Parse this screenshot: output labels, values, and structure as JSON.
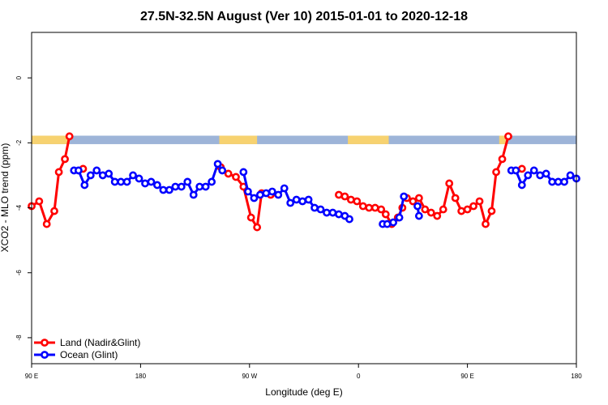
{
  "chart_data": {
    "type": "line",
    "title": "27.5N-32.5N August (Ver 10)   2015-01-01 to 2020-12-18",
    "xlabel": "Longitude (deg E)",
    "ylabel": "XCO2 - MLO trend (ppm)",
    "xlim": [
      0,
      360
    ],
    "ylim": [
      -8.8,
      1.4
    ],
    "x_tick_labels": [
      "90 E",
      "180",
      "90 W",
      "0",
      "90 E",
      "180"
    ],
    "y_ticks": [
      0,
      -2,
      -4,
      -6,
      -8
    ],
    "y_tick_labels": [
      "0",
      "-2",
      "-4",
      "-6",
      "-8"
    ],
    "grid": false,
    "legend_position": "bottom-left",
    "surface_band": {
      "y_range": [
        -1.78,
        -2.04
      ],
      "ocean_color": "#9db4d8",
      "land_color": "#f7d270",
      "land_segments": [
        [
          0,
          25
        ],
        [
          124,
          149
        ],
        [
          209,
          236
        ],
        [
          309,
          314
        ]
      ]
    },
    "series": [
      {
        "name": "Land (Nadir&Glint)",
        "color": "#ff0000",
        "segments": [
          [
            [
              0,
              -3.95
            ],
            [
              5,
              -3.8
            ],
            [
              10,
              -4.5
            ],
            [
              15,
              -4.1
            ],
            [
              18,
              -2.9
            ],
            [
              22,
              -2.5
            ],
            [
              25,
              -1.8
            ]
          ],
          [
            [
              34,
              -2.8
            ]
          ],
          [
            [
              125,
              -2.75
            ],
            [
              130,
              -2.95
            ],
            [
              135,
              -3.05
            ],
            [
              140,
              -3.35
            ],
            [
              145,
              -4.3
            ],
            [
              149,
              -4.6
            ],
            [
              152,
              -3.55
            ],
            [
              158,
              -3.6
            ]
          ],
          [
            [
              203,
              -3.6
            ],
            [
              207,
              -3.65
            ],
            [
              211,
              -3.75
            ],
            [
              215,
              -3.8
            ],
            [
              219,
              -3.95
            ],
            [
              223,
              -4.0
            ],
            [
              227,
              -4.0
            ],
            [
              231,
              -4.05
            ],
            [
              234,
              -4.2
            ],
            [
              238,
              -4.5
            ],
            [
              242,
              -4.3
            ],
            [
              245,
              -4.0
            ]
          ],
          [
            [
              248,
              -3.7
            ],
            [
              252,
              -3.8
            ],
            [
              256,
              -3.7
            ],
            [
              260,
              -4.05
            ],
            [
              264,
              -4.15
            ],
            [
              268,
              -4.25
            ],
            [
              272,
              -4.05
            ],
            [
              276,
              -3.25
            ],
            [
              280,
              -3.7
            ],
            [
              284,
              -4.1
            ],
            [
              288,
              -4.05
            ],
            [
              292,
              -3.95
            ],
            [
              296,
              -3.8
            ],
            [
              300,
              -4.5
            ],
            [
              304,
              -4.1
            ],
            [
              307,
              -2.9
            ],
            [
              311,
              -2.5
            ],
            [
              315,
              -1.8
            ]
          ],
          [
            [
              324,
              -2.8
            ]
          ]
        ]
      },
      {
        "name": "Ocean (Glint)",
        "color": "#0000ff",
        "segments": [
          [
            [
              28,
              -2.85
            ],
            [
              31,
              -2.85
            ],
            [
              35,
              -3.3
            ],
            [
              39,
              -3.0
            ],
            [
              43,
              -2.85
            ],
            [
              47,
              -3.0
            ],
            [
              51,
              -2.95
            ],
            [
              55,
              -3.2
            ],
            [
              59,
              -3.2
            ],
            [
              63,
              -3.2
            ],
            [
              67,
              -3.0
            ],
            [
              71,
              -3.1
            ],
            [
              75,
              -3.25
            ],
            [
              79,
              -3.2
            ],
            [
              83,
              -3.3
            ],
            [
              87,
              -3.45
            ],
            [
              91,
              -3.45
            ],
            [
              95,
              -3.35
            ],
            [
              99,
              -3.35
            ],
            [
              103,
              -3.2
            ],
            [
              107,
              -3.6
            ],
            [
              111,
              -3.35
            ],
            [
              115,
              -3.35
            ],
            [
              119,
              -3.2
            ],
            [
              123,
              -2.65
            ],
            [
              126,
              -2.85
            ]
          ],
          [
            [
              140,
              -2.9
            ],
            [
              143,
              -3.5
            ],
            [
              147,
              -3.7
            ],
            [
              151,
              -3.6
            ],
            [
              155,
              -3.55
            ],
            [
              159,
              -3.5
            ],
            [
              163,
              -3.6
            ],
            [
              167,
              -3.4
            ],
            [
              171,
              -3.85
            ],
            [
              175,
              -3.75
            ],
            [
              179,
              -3.8
            ],
            [
              183,
              -3.75
            ],
            [
              187,
              -4.0
            ],
            [
              191,
              -4.05
            ],
            [
              195,
              -4.15
            ],
            [
              199,
              -4.15
            ],
            [
              203,
              -4.2
            ],
            [
              207,
              -4.25
            ],
            [
              210,
              -4.35
            ]
          ],
          [
            [
              232,
              -4.5
            ],
            [
              235,
              -4.5
            ],
            [
              239,
              -4.45
            ],
            [
              243,
              -4.3
            ],
            [
              246,
              -3.65
            ]
          ],
          [
            [
              255,
              -3.95
            ],
            [
              256,
              -4.25
            ]
          ],
          [
            [
              317,
              -2.85
            ],
            [
              320,
              -2.85
            ],
            [
              324,
              -3.3
            ],
            [
              328,
              -3.0
            ],
            [
              332,
              -2.85
            ],
            [
              336,
              -3.0
            ],
            [
              340,
              -2.95
            ],
            [
              344,
              -3.2
            ],
            [
              348,
              -3.2
            ],
            [
              352,
              -3.2
            ],
            [
              356,
              -3.0
            ],
            [
              360,
              -3.1
            ]
          ]
        ]
      }
    ]
  }
}
